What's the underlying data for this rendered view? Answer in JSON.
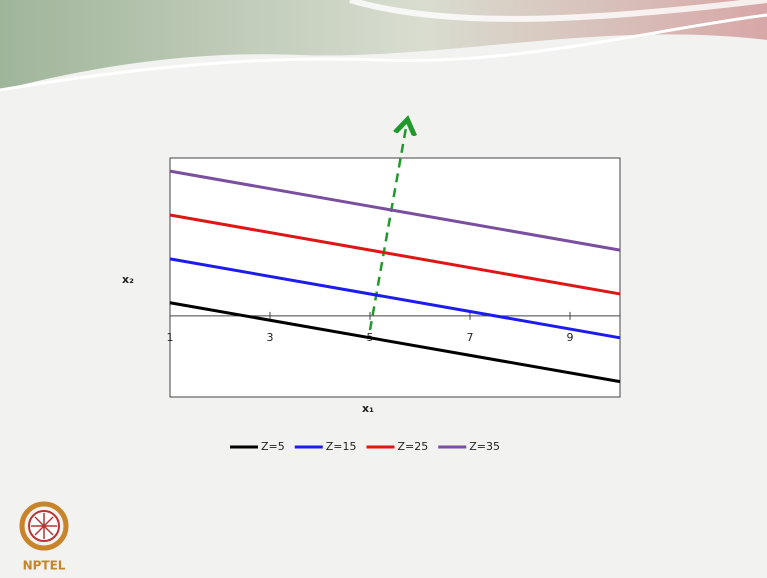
{
  "chart_data": {
    "type": "line",
    "x": [
      1,
      10
    ],
    "series": [
      {
        "name": "Z=5",
        "color": "#000000",
        "values": [
          3,
          -15
        ]
      },
      {
        "name": "Z=15",
        "color": "#1c1cf0",
        "values": [
          13,
          -5
        ]
      },
      {
        "name": "Z=25",
        "color": "#e01515",
        "values": [
          23,
          5
        ]
      },
      {
        "name": "Z=35",
        "color": "#7b4fa0",
        "values": [
          33,
          15
        ]
      }
    ],
    "xlabel": "x₁",
    "ylabel": "x₂",
    "xlim": [
      1,
      10
    ],
    "ylim": [
      -18.5,
      36
    ],
    "xticks": [
      1,
      3,
      5,
      7,
      9
    ],
    "legend": "bottom"
  },
  "logo": "NPTEL"
}
